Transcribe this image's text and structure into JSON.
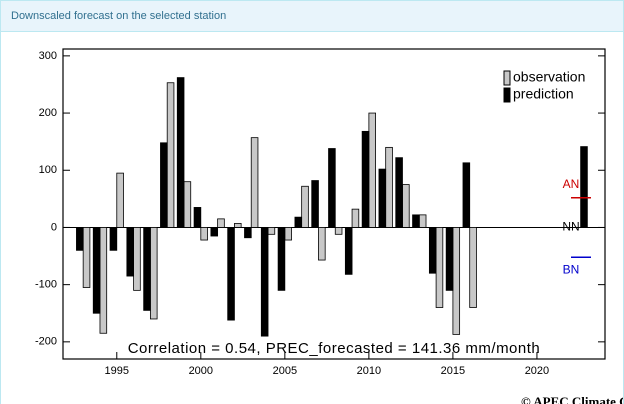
{
  "panel": {
    "title": "Downscaled forecast on the selected station",
    "credit": "© APEC Climate Center"
  },
  "chart_data": {
    "type": "bar",
    "x": [
      1992,
      1993,
      1994,
      1995,
      1996,
      1997,
      1998,
      1999,
      2000,
      2001,
      2002,
      2003,
      2004,
      2005,
      2006,
      2007,
      2008,
      2009,
      2010,
      2011,
      2012,
      2013,
      2014,
      2015,
      2016,
      2017,
      2018,
      2019,
      2020,
      2021,
      2022
    ],
    "series": [
      {
        "name": "observation",
        "color": "#c8c8c8",
        "values": [
          null,
          -105,
          -185,
          95,
          -110,
          -160,
          253,
          80,
          -22,
          15,
          7,
          157,
          -12,
          -22,
          72,
          -57,
          -12,
          32,
          200,
          140,
          75,
          22,
          -140,
          -187,
          -140,
          null,
          null,
          null,
          null,
          null,
          null
        ]
      },
      {
        "name": "prediction",
        "color": "#000000",
        "values": [
          -40,
          -150,
          -40,
          -85,
          -145,
          148,
          262,
          35,
          -15,
          -162,
          -18,
          -190,
          -110,
          18,
          82,
          138,
          -82,
          168,
          102,
          122,
          22,
          -80,
          -110,
          113,
          null,
          null,
          null,
          null,
          null,
          null,
          141.36
        ]
      }
    ],
    "xlim": [
      1991.8,
      2024.05
    ],
    "xticks": [
      1995,
      2000,
      2005,
      2010,
      2015,
      2020
    ],
    "ylim": [
      -230,
      312
    ],
    "yticks": [
      -200,
      -100,
      0,
      100,
      200,
      300
    ],
    "legend": "upper right",
    "annotation": "Correlation = 0.54,  PREC_forecasted = 141.36 mm/month",
    "thresholds": [
      {
        "label": "AN",
        "value": 52,
        "color": "#cc0000"
      },
      {
        "label": "NN",
        "value": 0,
        "color": "#000000"
      },
      {
        "label": "BN",
        "value": -52,
        "color": "#0000cc"
      }
    ]
  }
}
